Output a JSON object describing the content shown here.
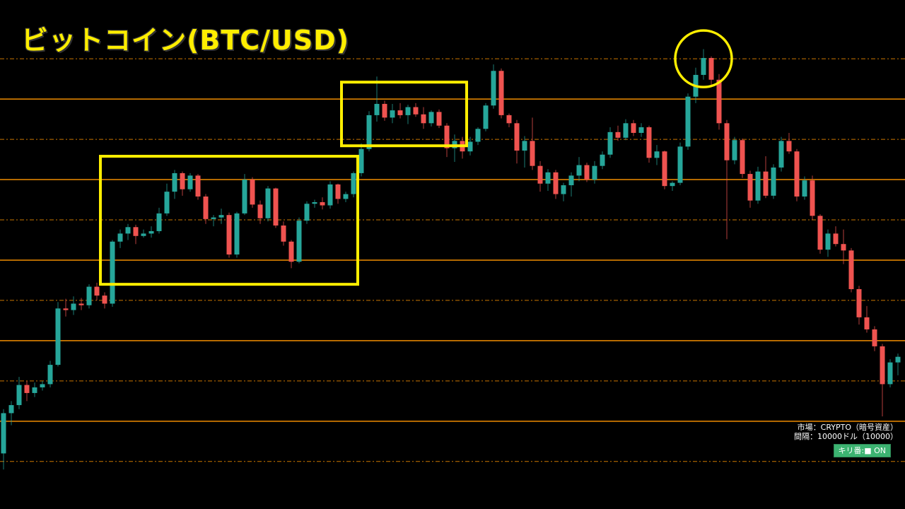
{
  "title": "ビットコイン(BTC/USD)",
  "info": {
    "market": "市場：CRYPTO（暗号資産）",
    "interval": "間隔：10000ドル（10000）",
    "round_number_toggle": "キリ番:■ ON"
  },
  "colors": {
    "up": "#26a69a",
    "down": "#ef5350",
    "level_line": "#f08c00",
    "highlight": "#ffee00",
    "background": "#000000",
    "toggle": "#3cb371"
  },
  "chart_data": {
    "type": "candlestick",
    "title": "ビットコイン(BTC/USD)",
    "xlabel": "",
    "ylabel": "",
    "price_unit": "USD",
    "ylim": [
      69100,
      132300
    ],
    "grid": false,
    "level_lines": {
      "interval": 10000,
      "solid": [
        80000,
        90000,
        100000,
        110000,
        120000
      ],
      "dashed": [
        75000,
        85000,
        95000,
        105000,
        115000,
        125000
      ]
    },
    "annotations": [
      {
        "type": "box",
        "from_candle": 13,
        "to_candle": 45,
        "price_high": 112900,
        "price_low": 97000
      },
      {
        "type": "box",
        "from_candle": 44,
        "to_candle": 59,
        "price_high": 122100,
        "price_low": 114200
      },
      {
        "type": "circle",
        "candle": 90,
        "price": 125000
      }
    ],
    "candles_fields": [
      "open",
      "high",
      "low",
      "close"
    ],
    "candles": [
      [
        76000,
        81500,
        74000,
        81000
      ],
      [
        81000,
        82500,
        79500,
        82000
      ],
      [
        82000,
        85500,
        81500,
        84500
      ],
      [
        84500,
        85000,
        82500,
        83500
      ],
      [
        83500,
        84800,
        83000,
        84200
      ],
      [
        84200,
        85000,
        83800,
        84600
      ],
      [
        84600,
        87500,
        84200,
        87000
      ],
      [
        87000,
        94800,
        86800,
        94000
      ],
      [
        94000,
        95200,
        93000,
        93800
      ],
      [
        93800,
        95500,
        93200,
        94600
      ],
      [
        94600,
        95300,
        93800,
        94400
      ],
      [
        94400,
        97000,
        94000,
        96700
      ],
      [
        96700,
        97200,
        95000,
        95600
      ],
      [
        95600,
        96000,
        94000,
        94600
      ],
      [
        94600,
        102500,
        94200,
        102300
      ],
      [
        102300,
        103800,
        101500,
        103300
      ],
      [
        103300,
        104500,
        102500,
        104100
      ],
      [
        104100,
        104400,
        102000,
        103000
      ],
      [
        103000,
        103800,
        102800,
        103300
      ],
      [
        103300,
        104200,
        102800,
        103600
      ],
      [
        103600,
        106500,
        103300,
        105800
      ],
      [
        105800,
        109500,
        105500,
        108500
      ],
      [
        108500,
        111200,
        107600,
        110800
      ],
      [
        110800,
        111000,
        108000,
        108800
      ],
      [
        108800,
        110800,
        108500,
        110500
      ],
      [
        110500,
        110700,
        107500,
        107900
      ],
      [
        107900,
        108200,
        104500,
        105100
      ],
      [
        105100,
        105600,
        104200,
        105300
      ],
      [
        105300,
        106400,
        104500,
        105600
      ],
      [
        105600,
        105900,
        100300,
        100700
      ],
      [
        100700,
        106000,
        100300,
        105800
      ],
      [
        105800,
        110700,
        105600,
        110000
      ],
      [
        110000,
        110300,
        106500,
        106900
      ],
      [
        106900,
        107400,
        104500,
        105200
      ],
      [
        105200,
        109200,
        104800,
        108900
      ],
      [
        108900,
        109000,
        104000,
        104300
      ],
      [
        104300,
        104800,
        101800,
        102300
      ],
      [
        102300,
        102500,
        99000,
        99800
      ],
      [
        99800,
        105300,
        99600,
        104900
      ],
      [
        104900,
        107300,
        104500,
        107000
      ],
      [
        107000,
        107500,
        106500,
        107200
      ],
      [
        107200,
        107800,
        106300,
        106800
      ],
      [
        106800,
        109800,
        106400,
        109400
      ],
      [
        109400,
        109500,
        107000,
        107600
      ],
      [
        107600,
        108500,
        107200,
        108200
      ],
      [
        108200,
        111000,
        107800,
        110800
      ],
      [
        110800,
        114500,
        110400,
        113800
      ],
      [
        113800,
        118500,
        113500,
        118000
      ],
      [
        118000,
        122800,
        117200,
        119400
      ],
      [
        119400,
        119800,
        117300,
        117700
      ],
      [
        117700,
        119400,
        117000,
        118600
      ],
      [
        118600,
        119500,
        117600,
        118000
      ],
      [
        118000,
        119300,
        116900,
        119000
      ],
      [
        119000,
        119500,
        117800,
        118100
      ],
      [
        118100,
        119000,
        116300,
        117000
      ],
      [
        117000,
        118600,
        116600,
        118400
      ],
      [
        118400,
        118700,
        116400,
        116700
      ],
      [
        116700,
        117000,
        112800,
        113900
      ],
      [
        113900,
        115600,
        112200,
        114800
      ],
      [
        114800,
        115300,
        112600,
        113500
      ],
      [
        113500,
        115300,
        113000,
        114700
      ],
      [
        114700,
        116500,
        114300,
        116300
      ],
      [
        116300,
        119500,
        116000,
        119200
      ],
      [
        119200,
        124300,
        118800,
        123500
      ],
      [
        123500,
        123800,
        117600,
        118000
      ],
      [
        118000,
        118200,
        116500,
        117000
      ],
      [
        117000,
        117400,
        112000,
        113600
      ],
      [
        113600,
        115400,
        111500,
        114800
      ],
      [
        114800,
        117700,
        111200,
        111700
      ],
      [
        111700,
        112300,
        108500,
        109500
      ],
      [
        109500,
        111300,
        108600,
        110900
      ],
      [
        110900,
        111200,
        107600,
        108200
      ],
      [
        108200,
        109600,
        107300,
        109300
      ],
      [
        109300,
        110900,
        107900,
        110500
      ],
      [
        110500,
        112800,
        109800,
        111800
      ],
      [
        111800,
        112100,
        109700,
        110000
      ],
      [
        110000,
        112300,
        109500,
        111700
      ],
      [
        111700,
        113500,
        111300,
        113100
      ],
      [
        113100,
        116500,
        112700,
        115900
      ],
      [
        115900,
        116700,
        114800,
        115200
      ],
      [
        115200,
        117500,
        114900,
        117000
      ],
      [
        117000,
        117400,
        115400,
        115800
      ],
      [
        115800,
        117000,
        115300,
        116500
      ],
      [
        116500,
        116700,
        112100,
        112700
      ],
      [
        112700,
        114300,
        111800,
        113500
      ],
      [
        113500,
        113600,
        108800,
        109200
      ],
      [
        109200,
        109800,
        108600,
        109600
      ],
      [
        109600,
        114600,
        109300,
        114100
      ],
      [
        114100,
        120700,
        113700,
        120300
      ],
      [
        120300,
        123900,
        119500,
        123000
      ],
      [
        123000,
        126200,
        122400,
        125100
      ],
      [
        125100,
        125300,
        121700,
        122400
      ],
      [
        122400,
        123100,
        116200,
        117000
      ],
      [
        117000,
        117400,
        102600,
        112400
      ],
      [
        112400,
        115300,
        111900,
        114900
      ],
      [
        114900,
        115100,
        110200,
        110700
      ],
      [
        110700,
        111100,
        106500,
        107400
      ],
      [
        107400,
        111600,
        107000,
        111000
      ],
      [
        111000,
        112900,
        107700,
        108000
      ],
      [
        108000,
        111900,
        107600,
        111500
      ],
      [
        111500,
        115300,
        111000,
        114800
      ],
      [
        114800,
        115800,
        113200,
        113500
      ],
      [
        113500,
        113800,
        107300,
        107900
      ],
      [
        107900,
        110400,
        107500,
        109900
      ],
      [
        109900,
        110500,
        105000,
        105500
      ],
      [
        105500,
        105700,
        100800,
        101300
      ],
      [
        101300,
        103800,
        100400,
        103300
      ],
      [
        103300,
        104200,
        101700,
        102000
      ],
      [
        102000,
        103800,
        99500,
        101200
      ],
      [
        101200,
        101500,
        96000,
        96400
      ],
      [
        96400,
        96800,
        92000,
        92900
      ],
      [
        92900,
        94300,
        91000,
        91400
      ],
      [
        91400,
        91800,
        88700,
        89300
      ],
      [
        89300,
        89600,
        80600,
        84600
      ],
      [
        84600,
        87700,
        84200,
        87300
      ],
      [
        87300,
        88400,
        85700,
        88000
      ]
    ]
  }
}
